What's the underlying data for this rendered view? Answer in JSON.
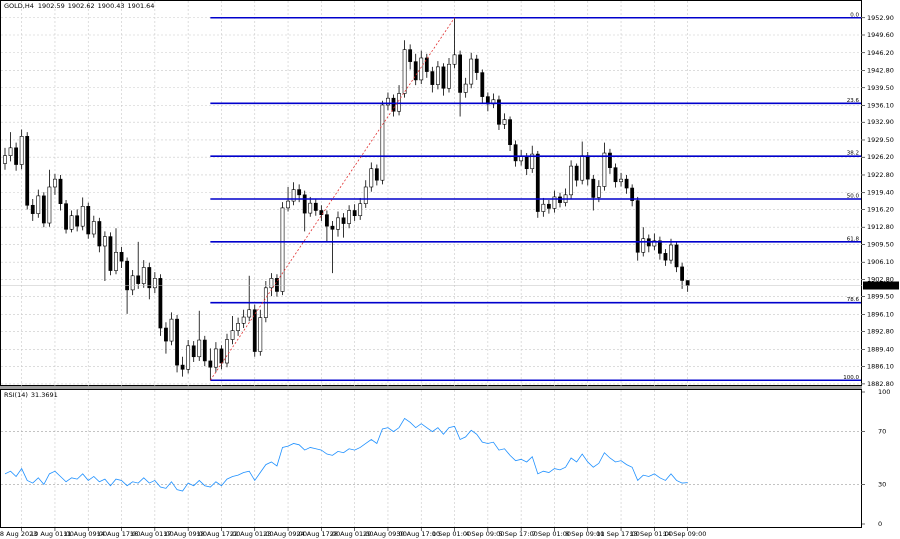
{
  "chart_data": {
    "type": "candlestick",
    "symbol": "GOLD,H4",
    "categories": [
      null,
      null,
      null,
      "8 Aug 2023",
      null,
      null,
      null,
      null,
      null,
      "10 Aug 01:00",
      null,
      null,
      null,
      null,
      null,
      "11 Aug 09:00",
      null,
      null,
      null,
      null,
      null,
      "14 Aug 17:00",
      null,
      null,
      null,
      null,
      null,
      "16 Aug 01:00",
      null,
      null,
      null,
      null,
      null,
      "17 Aug 09:00",
      null,
      null,
      null,
      null,
      null,
      "18 Aug 17:00",
      null,
      null,
      null,
      null,
      null,
      "22 Aug 01:00",
      null,
      null,
      null,
      null,
      null,
      "23 Aug 09:00",
      null,
      null,
      null,
      null,
      null,
      "24 Aug 17:00",
      null,
      null,
      null,
      null,
      null,
      "28 Aug 01:00",
      null,
      null,
      null,
      null,
      null,
      "29 Aug 09:00",
      null,
      null,
      null,
      null,
      null,
      "30 Aug 17:00",
      null,
      null,
      null,
      null,
      null,
      "1 Sep 01:00",
      null,
      null,
      null,
      null,
      null,
      "4 Sep 09:00",
      null,
      null,
      null,
      null,
      null,
      "5 Sep 17:00",
      null,
      null,
      null,
      null,
      null,
      "7 Sep 01:00",
      null,
      null,
      null,
      null,
      null,
      "8 Sep 09:00",
      null,
      null,
      null,
      null,
      null,
      "11 Sep 17:00",
      null,
      null,
      null,
      null,
      null,
      "13 Sep 01:00",
      null,
      null,
      null,
      null,
      null,
      "14 Sep 09:00"
    ],
    "open": [
      1925.0,
      1926.5,
      1928.0,
      1924.8,
      1930.2,
      1917.0,
      1915.4,
      1918.8,
      1913.6,
      1920.5,
      1922.0,
      1917.3,
      1912.4,
      1915.0,
      1913.0,
      1916.8,
      1911.5,
      1913.9,
      1909.2,
      1911.0,
      1904.5,
      1908.0,
      1906.3,
      1900.8,
      1903.5,
      1902.0,
      1905.1,
      1901.2,
      1903.0,
      1893.5,
      1891.0,
      1895.2,
      1886.4,
      1885.6,
      1890.1,
      1888.0,
      1891.2,
      1887.2,
      1886.0,
      1889.5,
      1886.8,
      1891.3,
      1893.0,
      1894.4,
      1895.6,
      1897.0,
      1889.0,
      1895.5,
      1901.2,
      1903.0,
      1900.5,
      1916.5,
      1917.8,
      1920.0,
      1919.0,
      1915.5,
      1917.4,
      1916.0,
      1915.2,
      1913.0,
      1912.4,
      1914.6,
      1913.5,
      1916.0,
      1915.0,
      1917.3,
      1920.5,
      1924.0,
      1921.8,
      1936.2,
      1937.5,
      1935.0,
      1938.4,
      1946.8,
      1944.5,
      1941.0,
      1945.2,
      1942.6,
      1940.1,
      1943.5,
      1939.4,
      1944.0,
      1945.8,
      1938.6,
      1940.2,
      1945.0,
      1942.4,
      1937.8,
      1936.4,
      1937.2,
      1932.5,
      1933.4,
      1928.6,
      1925.5,
      1926.4,
      1924.0,
      1926.8,
      1915.8,
      1917.2,
      1916.4,
      1918.6,
      1917.5,
      1919.0,
      1924.5,
      1921.8,
      1926.5,
      1922.0,
      1918.5,
      1920.6,
      1927.0,
      1924.2,
      1921.5,
      1922.0,
      1920.3,
      1917.9,
      1908.0,
      1910.6,
      1909.2,
      1910.2,
      1907.8,
      1906.5,
      1909.4,
      1905.2,
      1902.59
    ],
    "high": [
      1928.0,
      1931.0,
      1929.0,
      1931.5,
      1931.0,
      1918.2,
      1920.0,
      1919.5,
      1923.8,
      1923.0,
      1922.8,
      1918.0,
      1916.0,
      1916.2,
      1918.5,
      1917.5,
      1915.0,
      1914.6,
      1912.0,
      1911.8,
      1912.6,
      1909.0,
      1907.0,
      1904.6,
      1910.0,
      1906.5,
      1906.0,
      1904.2,
      1903.8,
      1894.6,
      1896.5,
      1896.0,
      1888.0,
      1891.2,
      1891.0,
      1896.8,
      1892.0,
      1889.6,
      1890.8,
      1890.2,
      1892.4,
      1895.8,
      1895.5,
      1897.0,
      1903.5,
      1898.0,
      1897.0,
      1902.5,
      1904.0,
      1903.8,
      1917.6,
      1920.5,
      1921.4,
      1921.0,
      1919.8,
      1918.6,
      1918.2,
      1917.0,
      1916.0,
      1914.0,
      1915.8,
      1915.5,
      1917.0,
      1917.2,
      1918.4,
      1921.8,
      1925.2,
      1924.8,
      1937.0,
      1938.6,
      1938.2,
      1940.0,
      1948.6,
      1947.8,
      1946.0,
      1946.6,
      1946.0,
      1943.5,
      1944.6,
      1944.2,
      1945.2,
      1952.9,
      1946.6,
      1941.4,
      1946.2,
      1945.8,
      1943.0,
      1938.6,
      1938.4,
      1938.0,
      1934.6,
      1934.0,
      1929.4,
      1927.6,
      1927.0,
      1928.4,
      1927.4,
      1918.4,
      1918.0,
      1919.8,
      1919.4,
      1920.2,
      1925.6,
      1925.0,
      1929.2,
      1927.2,
      1922.8,
      1921.8,
      1929.0,
      1927.8,
      1925.0,
      1923.2,
      1922.8,
      1921.0,
      1918.6,
      1912.8,
      1911.4,
      1911.6,
      1911.0,
      1908.6,
      1910.6,
      1910.0,
      1906.0,
      1902.62
    ],
    "low": [
      1923.8,
      1925.4,
      1923.6,
      1923.9,
      1916.2,
      1914.0,
      1914.6,
      1912.8,
      1912.9,
      1919.0,
      1916.0,
      1911.6,
      1911.8,
      1912.0,
      1912.2,
      1910.6,
      1910.8,
      1908.0,
      1902.5,
      1903.6,
      1903.8,
      1905.0,
      1896.2,
      1899.8,
      1901.0,
      1901.2,
      1899.0,
      1900.2,
      1892.0,
      1888.6,
      1890.2,
      1885.0,
      1884.2,
      1884.8,
      1887.0,
      1887.2,
      1886.2,
      1883.5,
      1885.0,
      1885.6,
      1886.0,
      1890.4,
      1892.0,
      1893.5,
      1894.8,
      1888.0,
      1888.2,
      1894.6,
      1899.6,
      1899.5,
      1899.8,
      1915.8,
      1917.0,
      1917.6,
      1912.0,
      1914.8,
      1915.0,
      1914.0,
      1910.0,
      1904.0,
      1911.0,
      1910.8,
      1912.6,
      1914.0,
      1914.2,
      1916.5,
      1919.6,
      1920.8,
      1921.0,
      1935.2,
      1934.0,
      1934.2,
      1937.6,
      1943.0,
      1940.0,
      1940.2,
      1941.4,
      1938.6,
      1939.2,
      1938.0,
      1938.6,
      1943.2,
      1934.0,
      1937.6,
      1939.4,
      1941.0,
      1936.6,
      1935.0,
      1935.6,
      1931.4,
      1931.6,
      1927.4,
      1924.4,
      1924.6,
      1922.8,
      1923.2,
      1914.6,
      1914.8,
      1915.4,
      1915.6,
      1916.6,
      1916.8,
      1918.2,
      1920.6,
      1921.0,
      1920.8,
      1916.0,
      1917.6,
      1919.8,
      1923.0,
      1920.4,
      1920.6,
      1919.2,
      1916.8,
      1906.4,
      1907.2,
      1908.0,
      1908.4,
      1906.6,
      1905.4,
      1905.8,
      1904.2,
      1901.0,
      1900.43
    ],
    "close": [
      1926.5,
      1928.0,
      1924.8,
      1930.2,
      1917.0,
      1915.4,
      1918.8,
      1913.6,
      1920.5,
      1922.0,
      1917.3,
      1912.4,
      1915.0,
      1913.0,
      1916.8,
      1911.5,
      1913.9,
      1909.2,
      1911.0,
      1904.5,
      1908.0,
      1906.3,
      1900.8,
      1903.5,
      1902.0,
      1905.1,
      1901.2,
      1903.0,
      1893.5,
      1891.0,
      1895.2,
      1886.4,
      1885.6,
      1890.1,
      1888.0,
      1891.2,
      1887.2,
      1886.0,
      1889.5,
      1886.8,
      1891.3,
      1893.0,
      1894.4,
      1895.6,
      1897.0,
      1889.0,
      1895.5,
      1901.2,
      1903.0,
      1900.5,
      1916.5,
      1917.8,
      1920.0,
      1919.0,
      1915.5,
      1917.4,
      1916.0,
      1915.2,
      1913.0,
      1912.4,
      1914.6,
      1913.5,
      1916.0,
      1915.0,
      1917.3,
      1920.5,
      1924.0,
      1921.8,
      1936.2,
      1937.5,
      1935.0,
      1938.4,
      1946.8,
      1944.5,
      1941.0,
      1945.2,
      1942.6,
      1940.1,
      1943.5,
      1939.4,
      1944.0,
      1945.8,
      1938.6,
      1940.2,
      1945.0,
      1942.4,
      1937.8,
      1936.4,
      1937.2,
      1932.5,
      1933.4,
      1928.6,
      1925.5,
      1926.4,
      1924.0,
      1926.8,
      1915.8,
      1917.2,
      1916.4,
      1918.6,
      1917.5,
      1919.0,
      1924.5,
      1921.8,
      1926.5,
      1922.0,
      1918.5,
      1920.6,
      1927.0,
      1924.2,
      1921.5,
      1922.0,
      1920.3,
      1917.9,
      1908.0,
      1910.6,
      1909.2,
      1910.2,
      1907.8,
      1906.5,
      1909.4,
      1905.2,
      1902.6,
      1901.64
    ],
    "color_up": "#ffffff",
    "color_down": "#000000",
    "ylim": [
      1882.4,
      1956.3
    ],
    "yticks": [
      {
        "value": 1952.9,
        "label": "1952.90"
      },
      {
        "value": 1949.6,
        "label": "1949.60"
      },
      {
        "value": 1946.2,
        "label": "1946.20"
      },
      {
        "value": 1942.8,
        "label": "1942.80"
      },
      {
        "value": 1939.5,
        "label": "1939.50"
      },
      {
        "value": 1936.1,
        "label": "1936.10"
      },
      {
        "value": 1932.9,
        "label": "1932.90"
      },
      {
        "value": 1929.5,
        "label": "1929.50"
      },
      {
        "value": 1926.2,
        "label": "1926.20"
      },
      {
        "value": 1922.8,
        "label": "1922.80"
      },
      {
        "value": 1919.4,
        "label": "1919.40"
      },
      {
        "value": 1916.2,
        "label": "1916.20"
      },
      {
        "value": 1912.8,
        "label": "1912.80"
      },
      {
        "value": 1909.5,
        "label": "1909.50"
      },
      {
        "value": 1906.1,
        "label": "1906.10"
      },
      {
        "value": 1902.8,
        "label": "1902.80"
      },
      {
        "value": 1899.5,
        "label": "1899.50"
      },
      {
        "value": 1896.1,
        "label": "1896.10"
      },
      {
        "value": 1892.8,
        "label": "1892.80"
      },
      {
        "value": 1889.4,
        "label": "1889.40"
      },
      {
        "value": 1886.1,
        "label": "1886.10"
      },
      {
        "value": 1882.8,
        "label": "1882.80"
      }
    ],
    "grid": true,
    "fibonacci": {
      "color": "#0000cc",
      "trend_color": "#e03030",
      "levels": [
        {
          "label": "0.0",
          "price": 1952.9
        },
        {
          "label": "23.6",
          "price": 1936.52
        },
        {
          "label": "38.2",
          "price": 1926.39
        },
        {
          "label": "50.0",
          "price": 1918.2
        },
        {
          "label": "61.8",
          "price": 1910.01
        },
        {
          "label": "78.6",
          "price": 1898.35
        },
        {
          "label": "100.0",
          "price": 1883.5
        }
      ]
    },
    "rsi": {
      "label": "RSI(14)",
      "color": "#1e90ff",
      "ylim": [
        0,
        100
      ],
      "yticks": [
        0,
        30,
        70,
        100
      ],
      "levels": [
        30,
        70
      ],
      "values": [
        38,
        40,
        36,
        42,
        33,
        31,
        35,
        30,
        38,
        40,
        36,
        32,
        35,
        34,
        38,
        33,
        36,
        32,
        34,
        29,
        34,
        33,
        29,
        32,
        31,
        35,
        31,
        33,
        28,
        27,
        32,
        26,
        25,
        31,
        29,
        33,
        29,
        28,
        32,
        29,
        34,
        36,
        37,
        39,
        40,
        33,
        39,
        45,
        47,
        44,
        58,
        59,
        61,
        60,
        56,
        58,
        57,
        56,
        53,
        52,
        55,
        54,
        57,
        56,
        58,
        61,
        64,
        61,
        72,
        73,
        70,
        73,
        80,
        77,
        73,
        76,
        73,
        70,
        73,
        68,
        73,
        74,
        64,
        66,
        71,
        68,
        62,
        61,
        62,
        56,
        57,
        52,
        48,
        49,
        47,
        51,
        38,
        40,
        39,
        42,
        41,
        43,
        50,
        47,
        53,
        47,
        43,
        46,
        54,
        50,
        47,
        48,
        45,
        43,
        33,
        37,
        36,
        38,
        35,
        33,
        38,
        33,
        31,
        31.3691
      ]
    }
  }
}
